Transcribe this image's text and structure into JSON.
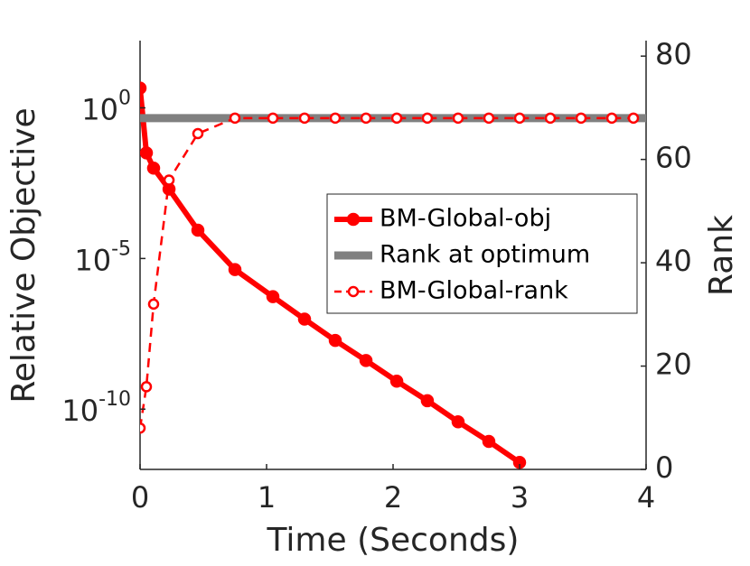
{
  "chart_data": {
    "type": "line",
    "xlabel": "Time (Seconds)",
    "ylabel": "Relative Objective",
    "y2label": "Rank",
    "xlim": [
      0,
      4
    ],
    "xticks": [
      0,
      1,
      2,
      3,
      4
    ],
    "ylim": [
      1e-12,
      170
    ],
    "ylog": true,
    "yticks": [
      {
        "value": 1e-10,
        "label": "10^-10"
      },
      {
        "value": 1e-05,
        "label": "10^-5"
      },
      {
        "value": 1,
        "label": "10^0"
      }
    ],
    "y2lim": [
      0,
      83
    ],
    "y2ticks": [
      0,
      20,
      40,
      60,
      80
    ],
    "legend": "center-right",
    "series": [
      {
        "name": "BM-Global-obj",
        "color": "#ff0000",
        "marker": "filled",
        "dash": false,
        "width": 6,
        "x": [
          0,
          0.05,
          0.107,
          0.229,
          0.457,
          0.75,
          1.05,
          1.3,
          1.543,
          1.786,
          2.029,
          2.271,
          2.514,
          2.757,
          3.0
        ],
        "values": [
          4.5,
          0.032,
          0.01,
          0.002,
          8.7e-05,
          4.3e-06,
          5.4e-07,
          9.7e-08,
          1.9e-08,
          4.1e-09,
          8.5e-10,
          1.9e-10,
          3.8e-11,
          8.5e-12,
          1.7e-12
        ]
      },
      {
        "name": "Rank at optimum",
        "color": "#808080",
        "marker": "none",
        "dash": false,
        "width": 9,
        "axis": "y2",
        "x": [
          0,
          4
        ],
        "values": [
          68,
          68
        ]
      },
      {
        "name": "BM-Global-rank",
        "color": "#ff0000",
        "marker": "open",
        "dash": true,
        "width": 2.5,
        "axis": "y2",
        "x": [
          0,
          0.05,
          0.107,
          0.229,
          0.457,
          0.75,
          1.05,
          1.3,
          1.543,
          1.786,
          2.029,
          2.271,
          2.514,
          2.757,
          3.0,
          3.243,
          3.486,
          3.729,
          3.9
        ],
        "values": [
          8,
          16,
          32,
          56,
          65,
          68,
          68,
          68,
          68,
          68,
          68,
          68,
          68,
          68,
          68,
          68,
          68,
          68,
          68
        ]
      }
    ]
  }
}
